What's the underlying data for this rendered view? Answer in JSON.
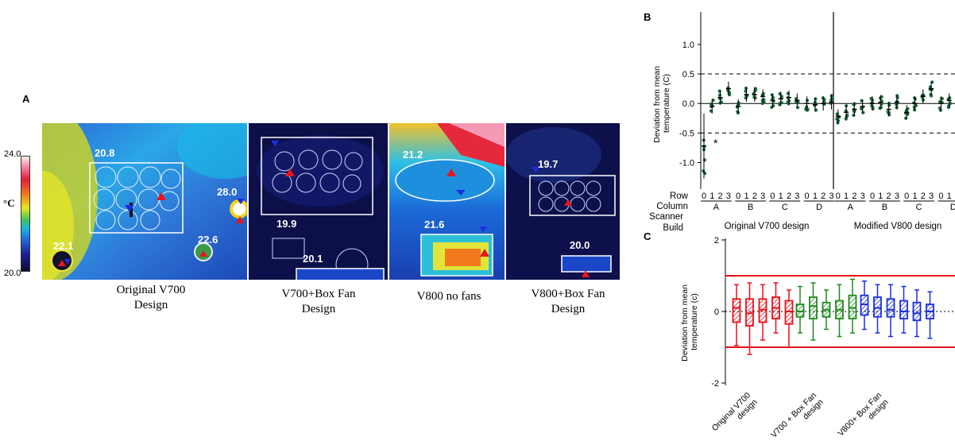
{
  "panel_a": {
    "letter": "A",
    "scale": {
      "max": "24.0",
      "min": "20.0",
      "unit": "°C"
    },
    "images": [
      {
        "caption": [
          "Original V700",
          "Design"
        ],
        "temps": [
          "20.8",
          "28.0",
          "22.1",
          "22.6"
        ]
      },
      {
        "caption": [
          "V700+Box Fan",
          "Design"
        ],
        "temps": [
          "19.9",
          "20.1"
        ]
      },
      {
        "caption": [
          "V800 no fans"
        ],
        "temps": [
          "21.2",
          "21.6"
        ]
      },
      {
        "caption": [
          "V800+Box Fan",
          "Design"
        ],
        "temps": [
          "19.7",
          "20.0"
        ]
      }
    ]
  },
  "panel_b": {
    "letter": "B",
    "row_header": "Row",
    "column_header": "Column",
    "build_header": [
      "Scanner",
      "Build"
    ],
    "rows_per_column": [
      "0",
      "1",
      "2",
      "3"
    ],
    "columns": [
      "A",
      "B",
      "C",
      "D"
    ],
    "asterisk": "*"
  },
  "panel_c": {
    "letter": "C"
  },
  "chart_data": [
    {
      "type": "scatter",
      "ylabel": "Deviation from mean temperature (C)",
      "ylim": [
        -1.45,
        1.55
      ],
      "yticks": [
        "1.0",
        "0.5",
        "0.0",
        "-0.5",
        "-1.0"
      ],
      "groups": [
        "Original V700 design",
        "Modified V800 design"
      ],
      "reference_lines": [
        0.5,
        0.0,
        -0.5
      ],
      "series": [
        {
          "name": "Original V700 design",
          "means": [
            -0.72,
            -0.05,
            0.1,
            0.25,
            -0.05,
            0.15,
            0.15,
            0.12,
            0.05,
            0.08,
            0.1,
            0.05,
            0.0,
            -0.02,
            0.0,
            0.02
          ]
        },
        {
          "name": "Modified V800 design",
          "means": [
            -0.22,
            -0.15,
            -0.1,
            -0.05,
            0.0,
            0.02,
            -0.1,
            0.02,
            -0.15,
            0.0,
            0.12,
            0.25,
            0.0,
            0.05,
            0.2,
            0.35
          ]
        }
      ]
    },
    {
      "type": "box",
      "ylabel": "Deviation from mean temperature (c)",
      "ylim": [
        -2,
        2
      ],
      "yticks": [
        "2",
        "0",
        "-2"
      ],
      "reference_lines": [
        1,
        -1
      ],
      "categories": [
        "Original V700 design",
        "V700 + Box Fan design",
        "V800+ Box Fan design"
      ],
      "colors": {
        "Original V700 design": "#e8101a",
        "V700 + Box Fan design": "#1f8a1f",
        "V800+ Box Fan design": "#1a2fe0"
      },
      "series": [
        {
          "name": "Original V700 design",
          "boxes": [
            [
              -0.95,
              -0.3,
              0.1,
              0.35,
              0.75
            ],
            [
              -1.2,
              -0.4,
              -0.05,
              0.35,
              0.8
            ],
            [
              -0.8,
              -0.3,
              0.05,
              0.35,
              0.75
            ],
            [
              -0.6,
              -0.2,
              0.1,
              0.4,
              0.8
            ],
            [
              -1.0,
              -0.35,
              0.0,
              0.3,
              0.6
            ]
          ]
        },
        {
          "name": "V700 + Box Fan design",
          "boxes": [
            [
              -0.6,
              -0.15,
              0.0,
              0.2,
              0.7
            ],
            [
              -0.8,
              -0.2,
              0.15,
              0.4,
              0.8
            ],
            [
              -0.5,
              -0.15,
              0.05,
              0.25,
              0.6
            ],
            [
              -0.7,
              -0.2,
              0.05,
              0.3,
              0.75
            ],
            [
              -0.6,
              -0.2,
              0.1,
              0.45,
              0.9
            ]
          ]
        },
        {
          "name": "V800+ Box Fan design",
          "boxes": [
            [
              -0.5,
              -0.1,
              0.2,
              0.45,
              0.85
            ],
            [
              -0.6,
              -0.15,
              0.1,
              0.4,
              0.75
            ],
            [
              -0.7,
              -0.15,
              0.05,
              0.35,
              0.75
            ],
            [
              -0.6,
              -0.2,
              0.0,
              0.3,
              0.7
            ],
            [
              -0.7,
              -0.25,
              -0.05,
              0.25,
              0.6
            ],
            [
              -0.75,
              -0.2,
              0.0,
              0.2,
              0.55
            ]
          ]
        }
      ]
    }
  ]
}
